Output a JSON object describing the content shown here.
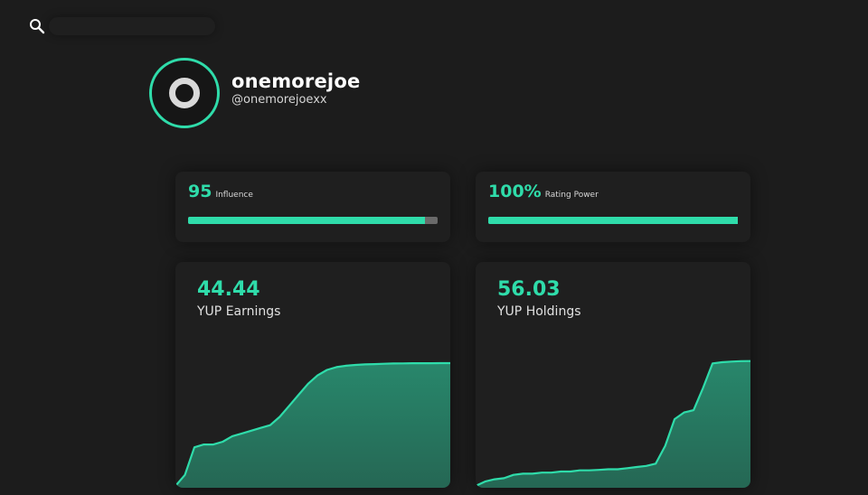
{
  "search": {
    "icon": "search-icon",
    "placeholder": ""
  },
  "profile": {
    "username": "onemorejoe",
    "handle": "@onemorejoexx",
    "avatar_icon": "ring-logo-icon",
    "accent": "#2fdcaa"
  },
  "stats": {
    "influence": {
      "value": "95",
      "label": "Influence",
      "fill_fraction": 0.95
    },
    "rating_power": {
      "value": "100%",
      "label": "Rating Power",
      "fill_fraction": 1.0
    }
  },
  "earnings": {
    "value": "44.44",
    "label": "YUP Earnings"
  },
  "holdings": {
    "value": "56.03",
    "label": "YUP Holdings"
  },
  "chart_data": [
    {
      "type": "area",
      "title": "YUP Earnings",
      "x": [
        0,
        1,
        2,
        3,
        4,
        5,
        6,
        7,
        8,
        9,
        10,
        11,
        12,
        13,
        14,
        15,
        16,
        17,
        18,
        19,
        20,
        21,
        22,
        23,
        24,
        25,
        26,
        27,
        28,
        29
      ],
      "y": [
        0,
        4,
        14,
        15,
        15,
        16,
        18,
        19,
        20,
        21,
        22,
        25,
        29,
        33,
        37,
        40,
        42,
        43,
        43.5,
        43.8,
        44,
        44.1,
        44.2,
        44.3,
        44.35,
        44.4,
        44.4,
        44.42,
        44.44,
        44.44
      ],
      "ylim": [
        0,
        50
      ],
      "color": "#2fdcaa"
    },
    {
      "type": "area",
      "title": "YUP Holdings",
      "x": [
        0,
        1,
        2,
        3,
        4,
        5,
        6,
        7,
        8,
        9,
        10,
        11,
        12,
        13,
        14,
        15,
        16,
        17,
        18,
        19,
        20,
        21,
        22,
        23,
        24,
        25,
        26,
        27,
        28,
        29
      ],
      "y": [
        0,
        2,
        3,
        3.5,
        5,
        5.5,
        5.5,
        6,
        6,
        6.5,
        6.5,
        7,
        7,
        7.2,
        7.5,
        7.5,
        8,
        8.5,
        9,
        10,
        18,
        30,
        33,
        34,
        44,
        55,
        55.5,
        55.8,
        56,
        56.03
      ],
      "ylim": [
        0,
        62
      ],
      "color": "#2fdcaa"
    }
  ]
}
